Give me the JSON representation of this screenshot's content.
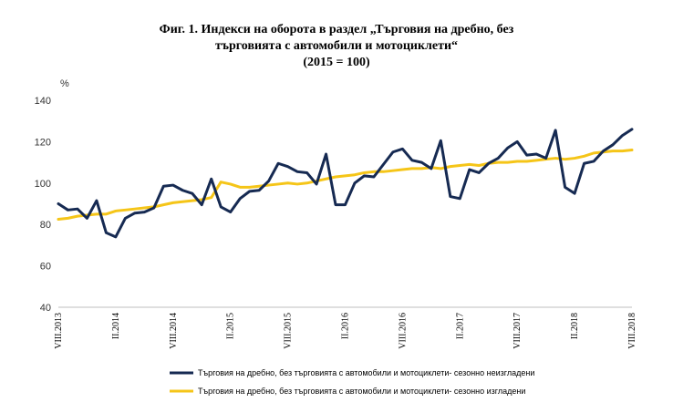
{
  "title_lines": [
    "Фиг. 1. Индекси на оборота в раздел „Търговия на дребно, без",
    "търговията с автомобили и мотоциклети“",
    "(2015 = 100)"
  ],
  "chart_data": {
    "type": "line",
    "title": "Фиг. 1. Индекси на оборота в раздел „Търговия на дребно, без търговията с автомобили и мотоциклети“ (2015 = 100)",
    "ylabel": "%",
    "xlabel": "",
    "ylim": [
      40,
      140
    ],
    "yticks": [
      40,
      60,
      80,
      100,
      120,
      140
    ],
    "grid": false,
    "legend_position": "bottom",
    "x_tick_labels": [
      {
        "index": 0,
        "label": "VIII.2013"
      },
      {
        "index": 6,
        "label": "II.2014"
      },
      {
        "index": 12,
        "label": "VIII.2014"
      },
      {
        "index": 18,
        "label": "II.2015"
      },
      {
        "index": 24,
        "label": "VIII.2015"
      },
      {
        "index": 30,
        "label": "II.2016"
      },
      {
        "index": 36,
        "label": "VIII.2016"
      },
      {
        "index": 42,
        "label": "II.2017"
      },
      {
        "index": 48,
        "label": "VIII.2017"
      },
      {
        "index": 54,
        "label": "II.2018"
      },
      {
        "index": 60,
        "label": "VIII.2018"
      }
    ],
    "series": [
      {
        "name": "Търговия на дребно, без търговията с автомобили и мотоциклети- сезонно неизгладени",
        "color": "#162a52",
        "values": [
          90,
          87,
          87.5,
          83,
          91.5,
          76,
          74,
          83,
          85.5,
          86,
          88,
          98.5,
          99,
          96.5,
          95,
          89.5,
          102,
          88.5,
          86,
          92.5,
          96,
          96.5,
          101,
          109.5,
          108,
          105.5,
          105,
          99.5,
          114,
          89.5,
          89.5,
          100,
          103.5,
          103,
          109,
          115,
          116.5,
          111,
          110,
          107,
          120.5,
          93.5,
          92.5,
          106.5,
          105,
          109.5,
          112,
          117,
          120,
          113.5,
          114,
          112,
          125.5,
          98,
          95,
          109.5,
          110.5,
          115.5,
          118.5,
          123,
          126
        ]
      },
      {
        "name": "Търговия на дребно, без търговията с автомобили и мотоциклети- сезонно изгладени",
        "color": "#f5c518",
        "values": [
          82.5,
          83,
          84,
          84.5,
          85,
          85,
          86.5,
          87,
          87.5,
          88,
          88.5,
          89.5,
          90.5,
          91,
          91.5,
          92,
          93,
          100.5,
          99.5,
          98,
          98,
          98.5,
          99,
          99.5,
          100,
          99.5,
          100,
          101,
          102,
          103,
          103.5,
          104,
          105,
          105.5,
          105.5,
          106,
          106.5,
          107,
          107,
          107.5,
          107,
          108,
          108.5,
          109,
          108.5,
          109.5,
          110,
          110,
          110.5,
          110.5,
          111,
          111.5,
          112,
          111.5,
          112,
          113,
          114.5,
          115,
          115.5,
          115.5,
          116
        ]
      }
    ]
  }
}
